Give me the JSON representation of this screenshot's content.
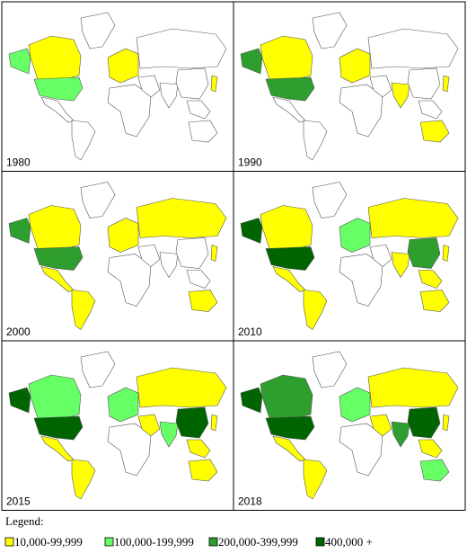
{
  "panels": [
    {
      "year": "1980"
    },
    {
      "year": "1990"
    },
    {
      "year": "2000"
    },
    {
      "year": "2010"
    },
    {
      "year": "2015"
    },
    {
      "year": "2018"
    }
  ],
  "legend": {
    "title": "Legend:",
    "items": [
      {
        "label": "10,000-99,999",
        "color": "#ffff00"
      },
      {
        "label": "100,000-199,999",
        "color": "#66ff66"
      },
      {
        "label": "200,000-399,999",
        "color": "#2e9e2e"
      },
      {
        "label": "400,000 +",
        "color": "#006400"
      }
    ]
  }
}
